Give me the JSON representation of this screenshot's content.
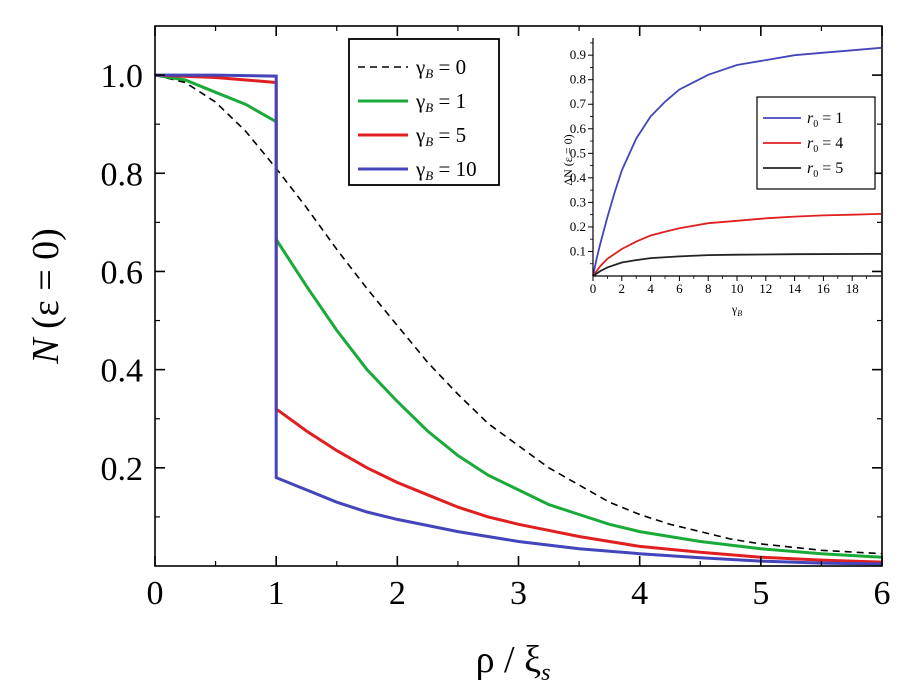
{
  "chart_data": [
    {
      "type": "line",
      "title": "",
      "xlabel": "ρ / ξs",
      "xlabel_parts": [
        "ρ / ξ",
        "s"
      ],
      "ylabel": "N (ε = 0)",
      "ylabel_parts": [
        "N",
        " (ε = 0)"
      ],
      "xlim": [
        0,
        6
      ],
      "ylim": [
        0,
        1.1
      ],
      "x_ticks": [
        "0",
        "1",
        "2",
        "3",
        "4",
        "5",
        "6"
      ],
      "y_ticks": [
        "0.2",
        "0.4",
        "0.6",
        "0.8",
        "1.0"
      ],
      "grid": false,
      "legend_position": "top-center",
      "series": [
        {
          "name": "γB = 0",
          "label_parts": [
            "γ",
            "B",
            " = 0"
          ],
          "color": "#000000",
          "dash": "dashed",
          "points": [
            [
              0,
              1.0
            ],
            [
              0.25,
              0.985
            ],
            [
              0.5,
              0.945
            ],
            [
              0.75,
              0.885
            ],
            [
              1.0,
              0.81
            ],
            [
              1.25,
              0.73
            ],
            [
              1.5,
              0.645
            ],
            [
              1.75,
              0.565
            ],
            [
              2.0,
              0.49
            ],
            [
              2.25,
              0.415
            ],
            [
              2.5,
              0.35
            ],
            [
              2.75,
              0.29
            ],
            [
              3.0,
              0.245
            ],
            [
              3.25,
              0.2
            ],
            [
              3.5,
              0.165
            ],
            [
              3.75,
              0.13
            ],
            [
              4.0,
              0.105
            ],
            [
              4.25,
              0.085
            ],
            [
              4.5,
              0.07
            ],
            [
              4.75,
              0.055
            ],
            [
              5.0,
              0.045
            ],
            [
              5.5,
              0.032
            ],
            [
              6.0,
              0.025
            ]
          ]
        },
        {
          "name": "γB = 1",
          "label_parts": [
            "γ",
            "B",
            " = 1"
          ],
          "color": "#1aaa3a",
          "dash": "solid",
          "points": [
            [
              0,
              1.0
            ],
            [
              0.25,
              0.99
            ],
            [
              0.5,
              0.965
            ],
            [
              0.75,
              0.94
            ],
            [
              1.0,
              0.905
            ],
            [
              1.0,
              0.665
            ],
            [
              1.25,
              0.57
            ],
            [
              1.5,
              0.48
            ],
            [
              1.75,
              0.4
            ],
            [
              2.0,
              0.335
            ],
            [
              2.25,
              0.275
            ],
            [
              2.5,
              0.225
            ],
            [
              2.75,
              0.185
            ],
            [
              3.0,
              0.155
            ],
            [
              3.25,
              0.125
            ],
            [
              3.5,
              0.105
            ],
            [
              3.75,
              0.085
            ],
            [
              4.0,
              0.07
            ],
            [
              4.5,
              0.05
            ],
            [
              5.0,
              0.035
            ],
            [
              5.5,
              0.025
            ],
            [
              6.0,
              0.018
            ]
          ]
        },
        {
          "name": "γB = 5",
          "label_parts": [
            "γ",
            "B",
            " = 5"
          ],
          "color": "#e02020",
          "dash": "solid",
          "points": [
            [
              0,
              1.0
            ],
            [
              0.5,
              0.995
            ],
            [
              0.75,
              0.99
            ],
            [
              1.0,
              0.985
            ],
            [
              1.0,
              0.32
            ],
            [
              1.25,
              0.275
            ],
            [
              1.5,
              0.235
            ],
            [
              1.75,
              0.2
            ],
            [
              2.0,
              0.17
            ],
            [
              2.25,
              0.145
            ],
            [
              2.5,
              0.12
            ],
            [
              2.75,
              0.1
            ],
            [
              3.0,
              0.085
            ],
            [
              3.5,
              0.06
            ],
            [
              4.0,
              0.04
            ],
            [
              4.5,
              0.028
            ],
            [
              5.0,
              0.018
            ],
            [
              5.5,
              0.012
            ],
            [
              6.0,
              0.008
            ]
          ]
        },
        {
          "name": "γB = 10",
          "label_parts": [
            "γ",
            "B",
            " = 10"
          ],
          "color": "#4444bb",
          "dash": "solid",
          "points": [
            [
              0,
              1.0
            ],
            [
              0.5,
              1.0
            ],
            [
              1.0,
              0.998
            ],
            [
              1.0,
              0.18
            ],
            [
              1.25,
              0.155
            ],
            [
              1.5,
              0.13
            ],
            [
              1.75,
              0.11
            ],
            [
              2.0,
              0.095
            ],
            [
              2.5,
              0.07
            ],
            [
              3.0,
              0.05
            ],
            [
              3.5,
              0.035
            ],
            [
              4.0,
              0.025
            ],
            [
              4.5,
              0.017
            ],
            [
              5.0,
              0.01
            ],
            [
              5.5,
              0.006
            ],
            [
              6.0,
              0.004
            ]
          ]
        }
      ]
    },
    {
      "type": "line",
      "title": "",
      "xlabel": "γB",
      "xlabel_parts": [
        "γ",
        "B"
      ],
      "ylabel": "ΔN (ε = 0)",
      "xlim": [
        0,
        20
      ],
      "ylim": [
        0,
        0.97
      ],
      "x_ticks": [
        "0",
        "2",
        "4",
        "6",
        "8",
        "10",
        "12",
        "14",
        "16",
        "18"
      ],
      "y_ticks": [
        "0.1",
        "0.2",
        "0.3",
        "0.4",
        "0.5",
        "0.6",
        "0.7",
        "0.8",
        "0.9"
      ],
      "grid": false,
      "legend_position": "right",
      "series": [
        {
          "name": "r0 = 1",
          "label_parts": [
            "r",
            "0",
            " = 1"
          ],
          "color": "#4444bb",
          "points": [
            [
              0,
              0.0
            ],
            [
              0.25,
              0.07
            ],
            [
              0.5,
              0.13
            ],
            [
              1,
              0.24
            ],
            [
              1.5,
              0.34
            ],
            [
              2,
              0.43
            ],
            [
              3,
              0.56
            ],
            [
              4,
              0.65
            ],
            [
              5,
              0.71
            ],
            [
              6,
              0.76
            ],
            [
              7,
              0.79
            ],
            [
              8,
              0.82
            ],
            [
              10,
              0.86
            ],
            [
              12,
              0.88
            ],
            [
              14,
              0.9
            ],
            [
              16,
              0.91
            ],
            [
              18,
              0.92
            ],
            [
              20,
              0.93
            ]
          ]
        },
        {
          "name": "r0 = 4",
          "label_parts": [
            "r",
            "0",
            " = 4"
          ],
          "color": "#e02020",
          "points": [
            [
              0,
              0.0
            ],
            [
              0.5,
              0.04
            ],
            [
              1,
              0.07
            ],
            [
              2,
              0.11
            ],
            [
              3,
              0.14
            ],
            [
              4,
              0.165
            ],
            [
              5,
              0.18
            ],
            [
              6,
              0.195
            ],
            [
              8,
              0.215
            ],
            [
              10,
              0.225
            ],
            [
              12,
              0.235
            ],
            [
              14,
              0.242
            ],
            [
              16,
              0.247
            ],
            [
              18,
              0.25
            ],
            [
              20,
              0.253
            ]
          ]
        },
        {
          "name": "r0 = 5",
          "label_parts": [
            "r",
            "0",
            " = 5"
          ],
          "color": "#222222",
          "points": [
            [
              0,
              0.0
            ],
            [
              0.5,
              0.02
            ],
            [
              1,
              0.035
            ],
            [
              2,
              0.055
            ],
            [
              3,
              0.065
            ],
            [
              4,
              0.073
            ],
            [
              6,
              0.08
            ],
            [
              8,
              0.085
            ],
            [
              10,
              0.087
            ],
            [
              14,
              0.089
            ],
            [
              20,
              0.09
            ]
          ]
        }
      ]
    }
  ]
}
